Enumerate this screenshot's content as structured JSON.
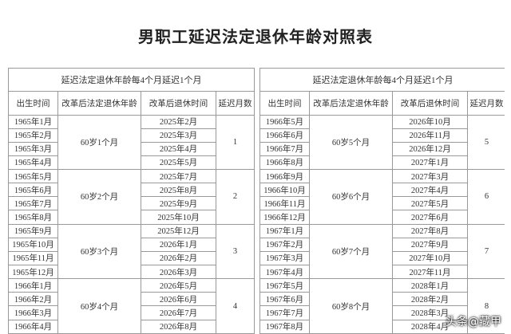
{
  "title": "男职工延迟法定退休年龄对照表",
  "tables": [
    {
      "header": "延迟法定退休年龄每4个月延迟1个月",
      "columns": [
        "出生时间",
        "改革后法定退休年龄",
        "改革后退休时间",
        "延迟月数"
      ],
      "groups": [
        {
          "births": [
            "1965年1月",
            "1965年2月",
            "1965年3月",
            "1965年4月"
          ],
          "age": "60岁1个月",
          "retire": [
            "2025年2月",
            "2025年3月",
            "2025年4月",
            "2025年5月"
          ],
          "delay": 1
        },
        {
          "births": [
            "1965年5月",
            "1965年6月",
            "1965年7月",
            "1965年8月"
          ],
          "age": "60岁2个月",
          "retire": [
            "2025年7月",
            "2025年8月",
            "2025年9月",
            "2025年10月"
          ],
          "delay": 2
        },
        {
          "births": [
            "1965年9月",
            "1965年10月",
            "1965年11月",
            "1965年12月"
          ],
          "age": "60岁3个月",
          "retire": [
            "2025年12月",
            "2026年1月",
            "2026年2月",
            "2026年3月"
          ],
          "delay": 3
        },
        {
          "births": [
            "1966年1月",
            "1966年2月",
            "1966年3月",
            "1966年4月"
          ],
          "age": "60岁4个月",
          "retire": [
            "2026年5月",
            "2026年6月",
            "2026年7月",
            "2026年8月"
          ],
          "delay": 4
        }
      ]
    },
    {
      "header": "延迟法定退休年龄每4个月延迟1个月",
      "columns": [
        "出生时间",
        "改革后法定退休年龄",
        "改革后退休时间",
        "延迟月数"
      ],
      "groups": [
        {
          "births": [
            "1966年5月",
            "1966年6月",
            "1966年7月",
            "1966年8月"
          ],
          "age": "60岁5个月",
          "retire": [
            "2026年10月",
            "2026年11月",
            "2026年12月",
            "2027年1月"
          ],
          "delay": 5
        },
        {
          "births": [
            "1966年9月",
            "1966年10月",
            "1966年11月",
            "1966年12月"
          ],
          "age": "60岁6个月",
          "retire": [
            "2027年3月",
            "2027年4月",
            "2027年5月",
            "2027年6月"
          ],
          "delay": 6
        },
        {
          "births": [
            "1967年1月",
            "1967年2月",
            "1967年3月",
            "1967年4月"
          ],
          "age": "60岁7个月",
          "retire": [
            "2027年8月",
            "2027年9月",
            "2027年10月",
            "2027年11月"
          ],
          "delay": 7
        },
        {
          "births": [
            "1967年5月",
            "1967年6月",
            "1967年7月",
            "1967年8月"
          ],
          "age": "60岁8个月",
          "retire": [
            "2028年1月",
            "2028年2月",
            "2028年3月",
            "2028年4月"
          ],
          "delay": 8
        }
      ]
    }
  ],
  "watermark": "头条@藏甲"
}
